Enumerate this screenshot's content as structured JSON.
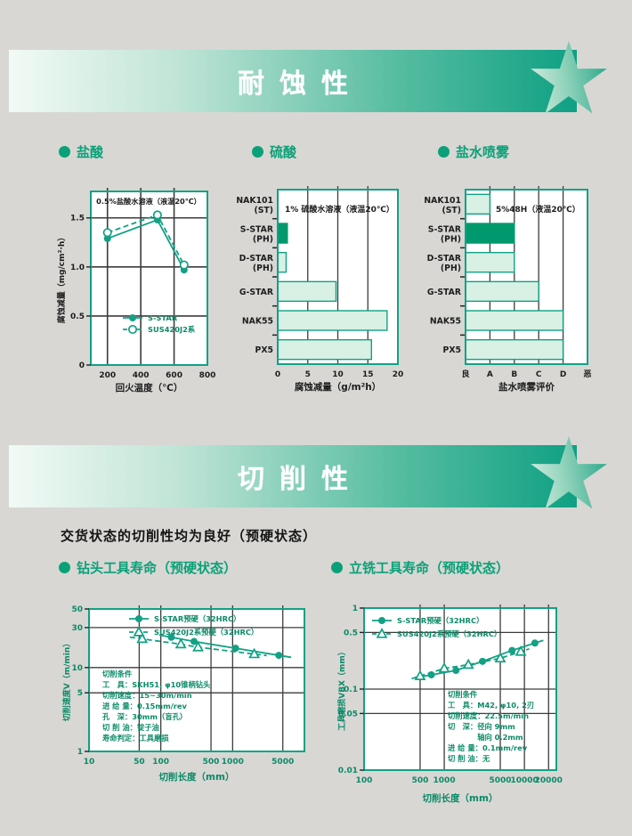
{
  "colors": {
    "page_bg": "#d8d7d4",
    "accent_green": "#12a184",
    "dark_green_bar": "#00996e",
    "light_green_bar": "#d9f0e5",
    "banner_gradient_start": "#f2faf6",
    "banner_gradient_end": "#0fa083",
    "grid_gray": "#3c3c3c",
    "text_black": "#1d1d1d",
    "text_green": "#0b8a67"
  },
  "banners": {
    "corrosion": {
      "title": "耐蚀性"
    },
    "machinability": {
      "title": "切削性"
    }
  },
  "sections": {
    "hydrochloric": {
      "label": "盐酸"
    },
    "sulfuric": {
      "label": "硫酸"
    },
    "salt_spray": {
      "label": "盐水喷雾"
    },
    "machinability_note": "交货状态的切削性均为良好（预硬状态）",
    "drill_life": {
      "label": "钻头工具寿命（预硬状态）"
    },
    "endmill_life": {
      "label": "立铣工具寿命（预硬状态）"
    }
  },
  "chart_data": [
    {
      "id": "hcl",
      "type": "line",
      "xscale": "linear",
      "yscale": "linear",
      "title": "0.5%盐酸水溶液（液温20℃）",
      "xlabel": "回火温度（℃）",
      "ylabel": "腐蚀减量（mg/cm²·h）",
      "xlim": [
        100,
        800
      ],
      "ylim": [
        0,
        1.77
      ],
      "xticks": [
        200,
        400,
        600,
        800
      ],
      "xtick_labels": [
        "200",
        "400",
        "600",
        "800"
      ],
      "yticks": [
        0,
        0.5,
        1.0,
        1.5
      ],
      "ytick_labels": [
        "0",
        "0.5",
        "1.0",
        "1.5"
      ],
      "grid": true,
      "legend_position": "inside-bottom-left",
      "series": [
        {
          "name": "S-STAR",
          "marker": "filled-circle",
          "dash": false,
          "points": [
            [
              200,
              1.29
            ],
            [
              500,
              1.48
            ],
            [
              660,
              0.97
            ]
          ]
        },
        {
          "name": "SUS420J2系",
          "marker": "open-circle",
          "dash": true,
          "points": [
            [
              200,
              1.35
            ],
            [
              500,
              1.53
            ],
            [
              660,
              1.02
            ]
          ]
        }
      ]
    },
    {
      "id": "h2so4",
      "type": "bar",
      "title": "1% 硫酸水溶液（液温20℃）",
      "xlabel": "腐蚀减量（g/m²h）",
      "categories": [
        [
          "NAK101",
          "(ST)"
        ],
        [
          "S-STAR",
          "(PH)"
        ],
        [
          "D-STAR",
          "(PH)"
        ],
        [
          "G-STAR"
        ],
        [
          "NAK55"
        ],
        [
          "PX5"
        ]
      ],
      "values": [
        0.1,
        1.6,
        1.4,
        9.7,
        18.2,
        15.6
      ],
      "highlight_index": 1,
      "xlim": [
        0,
        20
      ],
      "xticks": [
        0,
        5,
        10,
        15,
        20
      ],
      "xtick_labels": [
        "0",
        "5",
        "10",
        "15",
        "20"
      ],
      "grid": true
    },
    {
      "id": "saltspray",
      "type": "bar",
      "title": "5%48H（液温20℃）",
      "xlabel": "盐水喷雾评价",
      "categories": [
        [
          "NAK101",
          "(ST)"
        ],
        [
          "S-STAR",
          "(PH)"
        ],
        [
          "D-STAR",
          "(PH)"
        ],
        [
          "G-STAR"
        ],
        [
          "NAK55"
        ],
        [
          "PX5"
        ]
      ],
      "values": [
        1,
        2,
        2,
        3,
        4,
        4
      ],
      "highlight_index": 1,
      "xlim": [
        0,
        5
      ],
      "xticks": [
        0,
        1,
        2,
        3,
        4,
        5
      ],
      "xtick_labels": [
        "良",
        "A",
        "B",
        "C",
        "D",
        "恶"
      ],
      "grid": true
    },
    {
      "id": "drill",
      "type": "line",
      "xscale": "log",
      "yscale": "log",
      "title": "",
      "xlabel": "切削长度（mm）",
      "ylabel": "切削速度V（m/min）",
      "xlim": [
        10,
        10000
      ],
      "ylim": [
        1,
        50
      ],
      "xticks": [
        10,
        50,
        100,
        500,
        1000,
        5000
      ],
      "xtick_labels": [
        "10",
        "50",
        "100",
        "500",
        "1000",
        "5000"
      ],
      "yticks": [
        1,
        5,
        10,
        30,
        50
      ],
      "ytick_labels": [
        "1",
        "5",
        "10",
        "30",
        "50"
      ],
      "grid": true,
      "legend_position": "inside-top",
      "series": [
        {
          "name": "S-STAR预硬（32HRC）",
          "marker": "filled-circle",
          "dash": false,
          "points": [
            [
              140,
              23
            ],
            [
              290,
              20.5
            ],
            [
              1100,
              17
            ],
            [
              4400,
              14
            ]
          ]
        },
        {
          "name": "SUS420J2系预硬（32HRC）",
          "marker": "open-triangle",
          "dash": true,
          "points": [
            [
              55,
              22
            ],
            [
              190,
              19
            ],
            [
              330,
              17.5
            ],
            [
              2000,
              14.5
            ]
          ]
        }
      ],
      "conditions": [
        "切削条件",
        "工　具：SKH51, φ10锥柄钻头",
        "切削速度：15~30m/min",
        "进 给 量：0.15mm/rev",
        "孔　深：30mm（盲孔）",
        "切 削 油：锭子油",
        "寿命判定：工具磨损"
      ]
    },
    {
      "id": "endmill",
      "type": "line",
      "xscale": "log",
      "yscale": "log",
      "title": "",
      "xlabel": "切削长度（mm）",
      "ylabel": "工具磨损VBX（mm）",
      "xlim": [
        100,
        25000
      ],
      "ylim": [
        0.01,
        1
      ],
      "xticks": [
        100,
        500,
        1000,
        5000,
        10000,
        20000
      ],
      "xtick_labels": [
        "100",
        "500",
        "1000",
        "5000",
        "10000",
        "20000"
      ],
      "yticks": [
        0.01,
        0.05,
        0.1,
        0.5,
        1
      ],
      "ytick_labels": [
        "0.01",
        "0.05",
        "0.1",
        "0.5",
        "1"
      ],
      "grid": true,
      "legend_position": "inside-top-left",
      "series": [
        {
          "name": "S-STAR预硬（32HRC）",
          "marker": "filled-circle",
          "dash": false,
          "points": [
            [
              690,
              0.15
            ],
            [
              1400,
              0.17
            ],
            [
              3000,
              0.22
            ],
            [
              7000,
              0.3
            ],
            [
              13500,
              0.37
            ]
          ]
        },
        {
          "name": "SUS420J2系预硬（32HRC）",
          "marker": "open-triangle",
          "dash": true,
          "points": [
            [
              500,
              0.145
            ],
            [
              1000,
              0.18
            ],
            [
              2000,
              0.2
            ],
            [
              5000,
              0.24
            ],
            [
              9000,
              0.29
            ]
          ]
        }
      ],
      "conditions": [
        "切削条件",
        "工　具：M42, φ10, 2刃",
        "切削速度：22.5m/min",
        "切　深：径向 9mm",
        "　　　　轴向 0.2mm",
        "进 给 量：0.1mm/rev",
        "切 削 油：无"
      ]
    }
  ]
}
